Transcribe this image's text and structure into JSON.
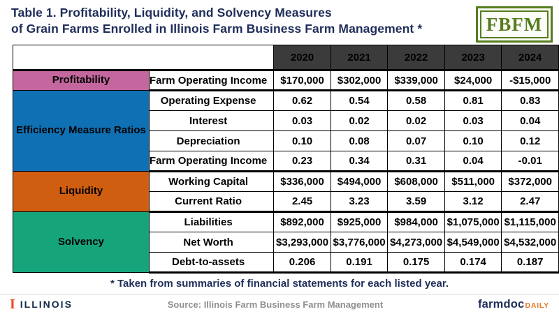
{
  "title": {
    "line1": "Table 1. Profitability, Liquidity, and Solvency Measures",
    "line2": "of Grain Farms Enrolled in Illinois Farm Business Farm Management *"
  },
  "fbfm_logo_text": "FBFM",
  "table": {
    "year_headers": [
      "2020",
      "2021",
      "2022",
      "2023",
      "2024"
    ],
    "sections": [
      {
        "category": "Profitability",
        "color": "#c4679e",
        "rows": [
          {
            "label": "Farm Operating Income",
            "values": [
              "$170,000",
              "$302,000",
              "$339,000",
              "$24,000",
              "-$15,000"
            ]
          }
        ]
      },
      {
        "category": "Efficiency Measure Ratios",
        "color": "#1070b4",
        "rows": [
          {
            "label": "Operating Expense",
            "values": [
              "0.62",
              "0.54",
              "0.58",
              "0.81",
              "0.83"
            ]
          },
          {
            "label": "Interest",
            "values": [
              "0.03",
              "0.02",
              "0.02",
              "0.03",
              "0.04"
            ]
          },
          {
            "label": "Depreciation",
            "values": [
              "0.10",
              "0.08",
              "0.07",
              "0.10",
              "0.12"
            ]
          },
          {
            "label": "Farm Operating Income",
            "values": [
              "0.23",
              "0.34",
              "0.31",
              "0.04",
              "-0.01"
            ]
          }
        ]
      },
      {
        "category": "Liquidity",
        "color": "#d05e10",
        "rows": [
          {
            "label": "Working Capital",
            "values": [
              "$336,000",
              "$494,000",
              "$608,000",
              "$511,000",
              "$372,000"
            ]
          },
          {
            "label": "Current Ratio",
            "values": [
              "2.45",
              "3.23",
              "3.59",
              "3.12",
              "2.47"
            ]
          }
        ]
      },
      {
        "category": "Solvency",
        "color": "#16a47b",
        "rows": [
          {
            "label": "Liabilities",
            "values": [
              "$892,000",
              "$925,000",
              "$984,000",
              "$1,075,000",
              "$1,115,000"
            ]
          },
          {
            "label": "Net Worth",
            "values": [
              "$3,293,000",
              "$3,776,000",
              "$4,273,000",
              "$4,549,000",
              "$4,532,000"
            ]
          },
          {
            "label": "Debt-to-assets",
            "values": [
              "0.206",
              "0.191",
              "0.175",
              "0.174",
              "0.187"
            ]
          }
        ]
      }
    ]
  },
  "footnote": "* Taken from summaries of financial statements for each listed year.",
  "footer": {
    "illinois_mark": "I",
    "illinois": "ILLINOIS",
    "source": "Source:  Illinois Farm Business Farm Management",
    "farmdoc": "farmdoc",
    "daily": "DAILY"
  },
  "colors": {
    "title_navy": "#1f2d5a",
    "header_bg": "#3b3b3b",
    "profitability": "#c4679e",
    "efficiency": "#1070b4",
    "liquidity": "#d05e10",
    "solvency": "#16a47b",
    "fbfm_green": "#567d1e",
    "illinois_orange": "#e84a27",
    "daily_orange": "#e87722"
  }
}
